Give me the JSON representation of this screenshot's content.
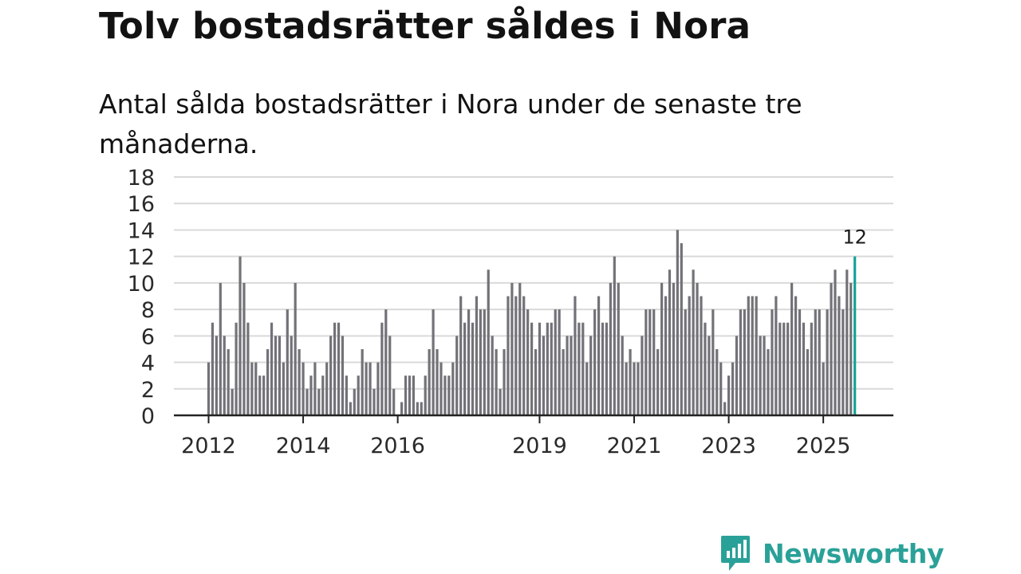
{
  "title": "Tolv bostadsrätter såldes i Nora",
  "subtitle": "Antal sålda bostadsrätter i Nora under de senaste tre månaderna.",
  "brand": {
    "name": "Newsworthy"
  },
  "colors": {
    "bar": "#737278",
    "highlight": "#17a398",
    "grid": "#d9d9d9",
    "axis": "#222222",
    "brand": "#2aa198"
  },
  "chart_data": {
    "type": "bar",
    "title": "Tolv bostadsrätter såldes i Nora",
    "subtitle": "Antal sålda bostadsrätter i Nora under de senaste tre månaderna.",
    "xlabel": "",
    "ylabel": "",
    "ylim": [
      0,
      18
    ],
    "yticks": [
      0,
      2,
      4,
      6,
      8,
      10,
      12,
      14,
      16,
      18
    ],
    "grid": true,
    "frequency": "monthly",
    "start": "2012-01",
    "end": "2025-11",
    "xticks": [
      {
        "label": "2012",
        "index": 0
      },
      {
        "label": "2014",
        "index": 24
      },
      {
        "label": "2016",
        "index": 48
      },
      {
        "label": "2019",
        "index": 84
      },
      {
        "label": "2021",
        "index": 108
      },
      {
        "label": "2023",
        "index": 132
      },
      {
        "label": "2025",
        "index": 156
      }
    ],
    "values": [
      4,
      7,
      6,
      10,
      6,
      5,
      2,
      7,
      12,
      10,
      7,
      4,
      4,
      3,
      3,
      5,
      7,
      6,
      6,
      4,
      8,
      6,
      10,
      5,
      4,
      2,
      3,
      4,
      2,
      3,
      4,
      6,
      7,
      7,
      6,
      3,
      1,
      2,
      3,
      5,
      4,
      4,
      2,
      4,
      7,
      8,
      6,
      2,
      0,
      1,
      3,
      3,
      3,
      1,
      1,
      3,
      5,
      8,
      5,
      4,
      3,
      3,
      4,
      6,
      9,
      7,
      8,
      7,
      9,
      8,
      8,
      11,
      6,
      5,
      2,
      5,
      9,
      10,
      9,
      10,
      9,
      8,
      7,
      5,
      7,
      6,
      7,
      7,
      8,
      8,
      5,
      6,
      6,
      9,
      7,
      7,
      4,
      6,
      8,
      9,
      7,
      7,
      10,
      12,
      10,
      6,
      4,
      5,
      4,
      4,
      6,
      8,
      8,
      8,
      5,
      10,
      9,
      11,
      10,
      14,
      13,
      8,
      9,
      11,
      10,
      9,
      7,
      6,
      8,
      5,
      4,
      1,
      3,
      4,
      6,
      8,
      8,
      9,
      9,
      9,
      6,
      6,
      5,
      8,
      9,
      7,
      7,
      7,
      10,
      9,
      8,
      7,
      5,
      7,
      8,
      8,
      4,
      8,
      10,
      11,
      9,
      8,
      11,
      10,
      12
    ],
    "highlight": {
      "index": 164,
      "value": 12,
      "label": "12"
    }
  }
}
